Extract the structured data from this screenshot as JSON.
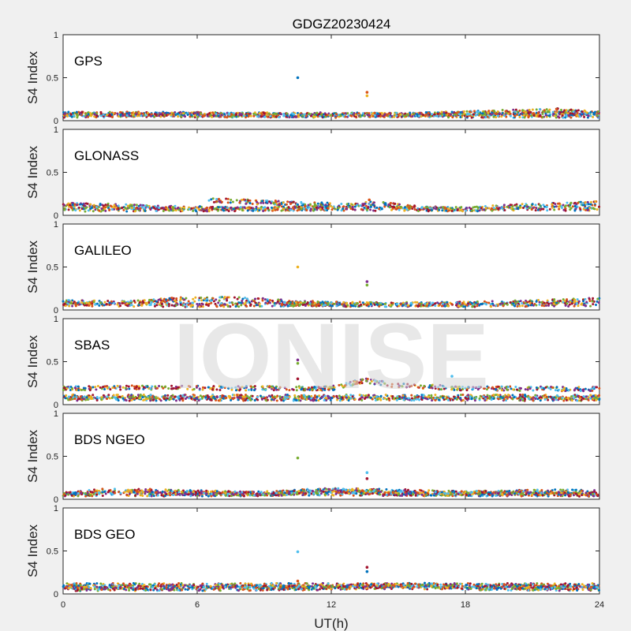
{
  "chart_data": {
    "type": "scatter",
    "title": "GDGZ20230424",
    "xlabel": "UT(h)",
    "xlim": [
      0,
      24
    ],
    "xticks": [
      "0",
      "6",
      "12",
      "18",
      "24"
    ],
    "watermark": "IONISE",
    "colors": [
      "#0072BD",
      "#D95319",
      "#EDB120",
      "#7E2F8E",
      "#77AC30",
      "#4DBEEE",
      "#A2142F"
    ],
    "panels": [
      {
        "label": "GPS",
        "ylabel": "S4 Index",
        "ylim": [
          0,
          1
        ],
        "yticks": [
          "0",
          "0.5",
          "1"
        ],
        "baseline": [
          {
            "x": [
              0,
              4,
              8,
              12,
              16,
              20,
              24
            ],
            "y": [
              0.07,
              0.08,
              0.07,
              0.06,
              0.07,
              0.09,
              0.07
            ]
          },
          {
            "x": [
              0,
              6,
              12,
              18,
              24
            ],
            "y": [
              0.06,
              0.07,
              0.07,
              0.06,
              0.06
            ]
          },
          {
            "x": [
              0,
              8,
              16,
              22,
              24
            ],
            "y": [
              0.08,
              0.06,
              0.07,
              0.12,
              0.08
            ]
          }
        ],
        "outliers": [
          {
            "x": 10.5,
            "y": 0.5
          },
          {
            "x": 13.6,
            "y": 0.33
          },
          {
            "x": 13.6,
            "y": 0.29
          }
        ]
      },
      {
        "label": "GLONASS",
        "ylabel": "S4 Index",
        "ylim": [
          0,
          1
        ],
        "yticks": [
          "0",
          "0.5",
          "1"
        ],
        "baseline": [
          {
            "x": [
              0,
              2,
              4,
              6,
              8,
              12
            ],
            "y": [
              0.12,
              0.11,
              0.09,
              0.08,
              0.07,
              0.09
            ]
          },
          {
            "x": [
              6.5,
              8,
              10,
              12
            ],
            "y": [
              0.18,
              0.16,
              0.14,
              0.12
            ]
          },
          {
            "x": [
              12,
              14,
              16,
              18,
              20,
              24
            ],
            "y": [
              0.1,
              0.14,
              0.08,
              0.07,
              0.1,
              0.14
            ]
          },
          {
            "x": [
              0,
              6,
              12,
              18,
              24
            ],
            "y": [
              0.07,
              0.07,
              0.08,
              0.07,
              0.08
            ]
          }
        ],
        "outliers": [
          {
            "x": 13.7,
            "y": 0.18
          }
        ]
      },
      {
        "label": "GALILEO",
        "ylabel": "S4 Index",
        "ylim": [
          0,
          1
        ],
        "yticks": [
          "0",
          "0.5",
          "1"
        ],
        "baseline": [
          {
            "x": [
              0,
              3,
              5,
              8,
              10,
              12
            ],
            "y": [
              0.09,
              0.08,
              0.12,
              0.13,
              0.09,
              0.07
            ]
          },
          {
            "x": [
              10,
              14,
              18,
              21,
              24
            ],
            "y": [
              0.07,
              0.06,
              0.07,
              0.09,
              0.12
            ]
          },
          {
            "x": [
              0,
              6,
              12,
              18,
              24
            ],
            "y": [
              0.07,
              0.06,
              0.07,
              0.06,
              0.07
            ]
          }
        ],
        "outliers": [
          {
            "x": 10.5,
            "y": 0.5
          },
          {
            "x": 13.6,
            "y": 0.33
          },
          {
            "x": 13.6,
            "y": 0.29
          }
        ]
      },
      {
        "label": "SBAS",
        "ylabel": "S4 Index",
        "ylim": [
          0,
          1
        ],
        "yticks": [
          "0",
          "0.5",
          "1"
        ],
        "baseline": [
          {
            "x": [
              0,
              4,
              8,
              12,
              13.5,
              15,
              18,
              24
            ],
            "y": [
              0.19,
              0.2,
              0.19,
              0.19,
              0.28,
              0.22,
              0.19,
              0.18
            ]
          },
          {
            "x": [
              0,
              6,
              12,
              18,
              24
            ],
            "y": [
              0.09,
              0.09,
              0.09,
              0.09,
              0.09
            ]
          },
          {
            "x": [
              0,
              6,
              12,
              18,
              24
            ],
            "y": [
              0.07,
              0.07,
              0.07,
              0.07,
              0.07
            ]
          }
        ],
        "outliers": [
          {
            "x": 10.5,
            "y": 0.52
          },
          {
            "x": 10.5,
            "y": 0.48
          },
          {
            "x": 17.4,
            "y": 0.33
          },
          {
            "x": 10.5,
            "y": 0.3
          }
        ]
      },
      {
        "label": "BDS NGEO",
        "ylabel": "S4 Index",
        "ylim": [
          0,
          1
        ],
        "yticks": [
          "0",
          "0.5",
          "1"
        ],
        "baseline": [
          {
            "x": [
              0,
              2,
              4,
              6,
              8,
              10,
              12,
              14,
              18,
              22,
              24
            ],
            "y": [
              0.06,
              0.1,
              0.07,
              0.07,
              0.06,
              0.08,
              0.11,
              0.1,
              0.07,
              0.09,
              0.08
            ]
          },
          {
            "x": [
              0,
              6,
              12,
              18,
              24
            ],
            "y": [
              0.06,
              0.06,
              0.07,
              0.06,
              0.06
            ]
          },
          {
            "x": [
              3,
              6,
              9,
              12,
              16,
              20,
              24
            ],
            "y": [
              0.1,
              0.08,
              0.06,
              0.1,
              0.06,
              0.08,
              0.05
            ]
          }
        ],
        "outliers": [
          {
            "x": 10.5,
            "y": 0.48
          },
          {
            "x": 13.6,
            "y": 0.31
          },
          {
            "x": 13.6,
            "y": 0.24
          }
        ]
      },
      {
        "label": "BDS GEO",
        "ylabel": "S4 Index",
        "ylim": [
          0,
          1
        ],
        "yticks": [
          "0",
          "0.5",
          "1"
        ],
        "baseline": [
          {
            "x": [
              0,
              6,
              12,
              18,
              24
            ],
            "y": [
              0.1,
              0.1,
              0.1,
              0.1,
              0.1
            ]
          },
          {
            "x": [
              0,
              6,
              12,
              18,
              24
            ],
            "y": [
              0.08,
              0.08,
              0.08,
              0.08,
              0.08
            ]
          },
          {
            "x": [
              0,
              6,
              12,
              16,
              18,
              24
            ],
            "y": [
              0.06,
              0.06,
              0.07,
              0.11,
              0.07,
              0.06
            ]
          }
        ],
        "outliers": [
          {
            "x": 10.5,
            "y": 0.49
          },
          {
            "x": 13.6,
            "y": 0.31
          },
          {
            "x": 13.6,
            "y": 0.26
          },
          {
            "x": 10.5,
            "y": 0.15
          }
        ]
      }
    ]
  }
}
